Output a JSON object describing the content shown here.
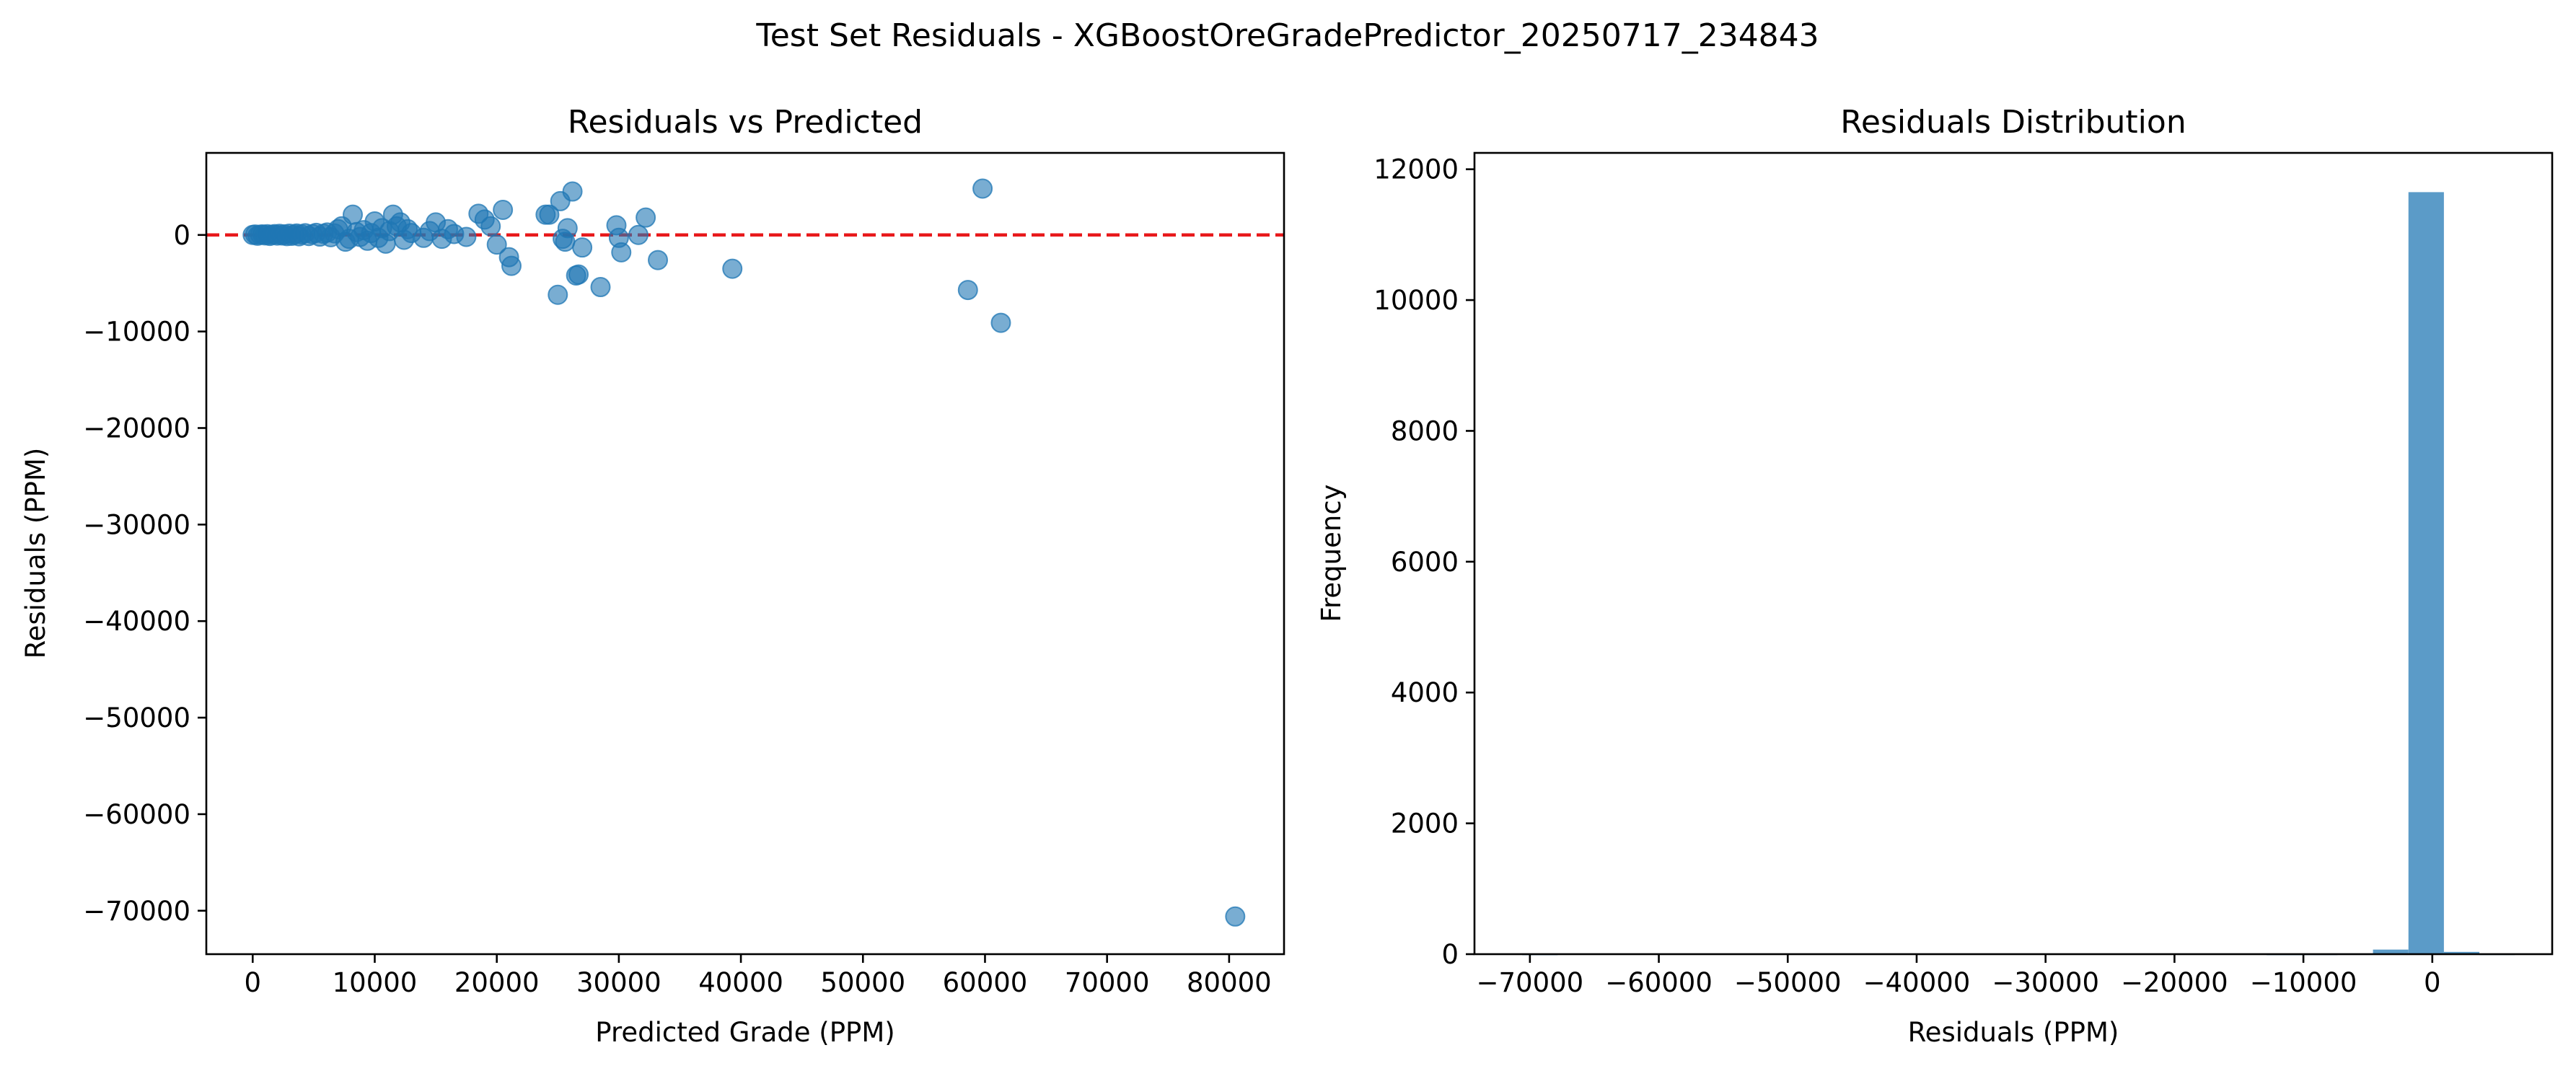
{
  "figure_title": "Test Set Residuals - XGBoostOreGradePredictor_20250717_234843",
  "chart_data": [
    {
      "type": "scatter",
      "title": "Residuals vs Predicted",
      "xlabel": "Predicted Grade (PPM)",
      "ylabel": "Residuals (PPM)",
      "xlim": [
        -3800,
        84500
      ],
      "ylim": [
        -74500,
        8500
      ],
      "xticks": [
        0,
        10000,
        20000,
        30000,
        40000,
        50000,
        60000,
        70000,
        80000
      ],
      "xtick_labels": [
        "0",
        "10000",
        "20000",
        "30000",
        "40000",
        "50000",
        "60000",
        "70000",
        "80000"
      ],
      "yticks": [
        0,
        -10000,
        -20000,
        -30000,
        -40000,
        -50000,
        -60000,
        -70000
      ],
      "ytick_labels": [
        "0",
        "−10000",
        "−20000",
        "−30000",
        "−40000",
        "−50000",
        "−60000",
        "−70000"
      ],
      "reference_line": {
        "y": 0,
        "color": "#e8191b",
        "style": "dashed"
      },
      "point_color": "#1f77b4",
      "points": [
        [
          0,
          0
        ],
        [
          200,
          50
        ],
        [
          400,
          -80
        ],
        [
          600,
          30
        ],
        [
          800,
          60
        ],
        [
          1000,
          -40
        ],
        [
          1200,
          80
        ],
        [
          1400,
          -100
        ],
        [
          1600,
          20
        ],
        [
          1800,
          90
        ],
        [
          2000,
          -60
        ],
        [
          2200,
          110
        ],
        [
          2400,
          -50
        ],
        [
          2600,
          70
        ],
        [
          2800,
          -120
        ],
        [
          3000,
          130
        ],
        [
          3200,
          -90
        ],
        [
          3400,
          40
        ],
        [
          3600,
          150
        ],
        [
          3800,
          -140
        ],
        [
          4000,
          60
        ],
        [
          4300,
          180
        ],
        [
          4600,
          -110
        ],
        [
          4900,
          90
        ],
        [
          5200,
          220
        ],
        [
          5500,
          -170
        ],
        [
          5800,
          120
        ],
        [
          6100,
          250
        ],
        [
          6400,
          -230
        ],
        [
          6700,
          160
        ],
        [
          7000,
          600
        ],
        [
          7300,
          900
        ],
        [
          7600,
          -700
        ],
        [
          7900,
          -400
        ],
        [
          8200,
          2100
        ],
        [
          8500,
          300
        ],
        [
          8800,
          -200
        ],
        [
          9100,
          500
        ],
        [
          9400,
          -600
        ],
        [
          9700,
          200
        ],
        [
          10000,
          1400
        ],
        [
          10300,
          -300
        ],
        [
          10600,
          700
        ],
        [
          10900,
          -900
        ],
        [
          11200,
          400
        ],
        [
          11500,
          2100
        ],
        [
          11800,
          900
        ],
        [
          12100,
          1300
        ],
        [
          12400,
          -500
        ],
        [
          12700,
          600
        ],
        [
          13000,
          200
        ],
        [
          14000,
          -300
        ],
        [
          14500,
          400
        ],
        [
          15000,
          1300
        ],
        [
          15500,
          -400
        ],
        [
          16000,
          600
        ],
        [
          16500,
          100
        ],
        [
          17500,
          -200
        ],
        [
          18500,
          2200
        ],
        [
          19000,
          1600
        ],
        [
          19500,
          900
        ],
        [
          20000,
          -1000
        ],
        [
          20500,
          2600
        ],
        [
          21000,
          -2300
        ],
        [
          21200,
          -3200
        ],
        [
          24000,
          2100
        ],
        [
          24300,
          2100
        ],
        [
          25000,
          -6200
        ],
        [
          25200,
          3500
        ],
        [
          25400,
          -400
        ],
        [
          25600,
          -700
        ],
        [
          25800,
          700
        ],
        [
          26200,
          4500
        ],
        [
          26500,
          -4200
        ],
        [
          26700,
          -4100
        ],
        [
          27000,
          -1300
        ],
        [
          28500,
          -5400
        ],
        [
          29800,
          1000
        ],
        [
          30000,
          -300
        ],
        [
          30200,
          -1800
        ],
        [
          31600,
          0
        ],
        [
          32200,
          1800
        ],
        [
          33200,
          -2600
        ],
        [
          39300,
          -3500
        ],
        [
          58600,
          -5700
        ],
        [
          59800,
          4800
        ],
        [
          61300,
          -9100
        ],
        [
          80500,
          -70600
        ]
      ]
    },
    {
      "type": "bar",
      "title": "Residuals Distribution",
      "xlabel": "Residuals (PPM)",
      "ylabel": "Frequency",
      "xlim": [
        -74300,
        9300
      ],
      "ylim": [
        0,
        12250
      ],
      "xticks": [
        -70000,
        -60000,
        -50000,
        -40000,
        -30000,
        -20000,
        -10000,
        0
      ],
      "xtick_labels": [
        "−70000",
        "−60000",
        "−50000",
        "−40000",
        "−30000",
        "−20000",
        "−10000",
        "0"
      ],
      "yticks": [
        0,
        2000,
        4000,
        6000,
        8000,
        10000,
        12000
      ],
      "ytick_labels": [
        "0",
        "2000",
        "4000",
        "6000",
        "8000",
        "10000",
        "12000"
      ],
      "bar_color": "#5b9bc8",
      "bins": [
        {
          "x0": -70600,
          "x1": -67850,
          "count": 1
        },
        {
          "x0": -67850,
          "x1": -65100,
          "count": 0
        },
        {
          "x0": -65100,
          "x1": -62350,
          "count": 0
        },
        {
          "x0": -62350,
          "x1": -59600,
          "count": 0
        },
        {
          "x0": -59600,
          "x1": -56850,
          "count": 0
        },
        {
          "x0": -56850,
          "x1": -54100,
          "count": 0
        },
        {
          "x0": -54100,
          "x1": -51350,
          "count": 0
        },
        {
          "x0": -51350,
          "x1": -48600,
          "count": 0
        },
        {
          "x0": -48600,
          "x1": -45850,
          "count": 0
        },
        {
          "x0": -45850,
          "x1": -43100,
          "count": 0
        },
        {
          "x0": -43100,
          "x1": -40350,
          "count": 0
        },
        {
          "x0": -40350,
          "x1": -37600,
          "count": 0
        },
        {
          "x0": -37600,
          "x1": -34850,
          "count": 0
        },
        {
          "x0": -34850,
          "x1": -32100,
          "count": 0
        },
        {
          "x0": -32100,
          "x1": -29350,
          "count": 0
        },
        {
          "x0": -29350,
          "x1": -26600,
          "count": 0
        },
        {
          "x0": -26600,
          "x1": -23850,
          "count": 0
        },
        {
          "x0": -23850,
          "x1": -21100,
          "count": 0
        },
        {
          "x0": -21100,
          "x1": -18350,
          "count": 0
        },
        {
          "x0": -18350,
          "x1": -15600,
          "count": 0
        },
        {
          "x0": -15600,
          "x1": -12850,
          "count": 0
        },
        {
          "x0": -12850,
          "x1": -10100,
          "count": 1
        },
        {
          "x0": -10100,
          "x1": -7350,
          "count": 2
        },
        {
          "x0": -7350,
          "x1": -4600,
          "count": 5
        },
        {
          "x0": -4600,
          "x1": -1850,
          "count": 70
        },
        {
          "x0": -1850,
          "x1": 900,
          "count": 11650
        },
        {
          "x0": 900,
          "x1": 3650,
          "count": 35
        },
        {
          "x0": 3650,
          "x1": 6400,
          "count": 3
        }
      ]
    }
  ]
}
